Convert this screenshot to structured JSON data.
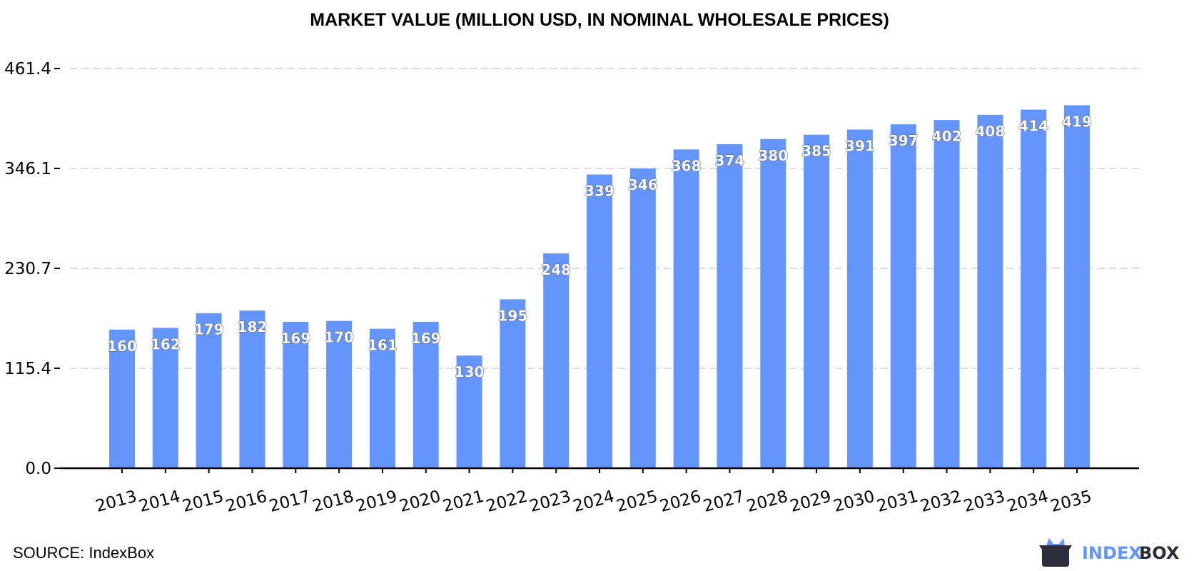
{
  "chart_data": {
    "type": "bar",
    "title": "MARKET VALUE (MILLION USD, IN NOMINAL WHOLESALE PRICES)",
    "xlabel": "",
    "ylabel": "",
    "categories": [
      "2013",
      "2014",
      "2015",
      "2016",
      "2017",
      "2018",
      "2019",
      "2020",
      "2021",
      "2022",
      "2023",
      "2024",
      "2025",
      "2026",
      "2027",
      "2028",
      "2029",
      "2030",
      "2031",
      "2032",
      "2033",
      "2034",
      "2035"
    ],
    "values": [
      160,
      162,
      179,
      182,
      169,
      170,
      161,
      169,
      130,
      195,
      248,
      339,
      346,
      368,
      374,
      380,
      385,
      391,
      397,
      402,
      408,
      414,
      419
    ],
    "yticks": [
      "0.0",
      "115.4",
      "230.7",
      "346.1",
      "461.4"
    ],
    "ytick_values": [
      0,
      115.4,
      230.7,
      346.1,
      461.4
    ],
    "ylim": [
      0,
      461.4
    ],
    "grid": "horizontal dashed",
    "bar_color": "#6495fd"
  },
  "source": "SOURCE: IndexBox",
  "logo": {
    "text_a": "INDEX",
    "text_b": "BOX",
    "color_a": "#6495fd",
    "color_b": "#2b2d3a"
  }
}
